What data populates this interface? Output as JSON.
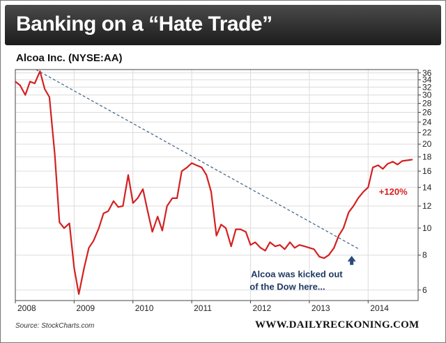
{
  "header": {
    "title": "Banking on a “Hate Trade”"
  },
  "chart_title": "Alcoa Inc. (NYSE:AA)",
  "footer": {
    "source": "Source: StockCharts.com",
    "brand": "WWW.DAILYRECKONING.COM"
  },
  "colors": {
    "price_line": "#d42020",
    "trend_line": "#4a6a8a",
    "arrow": "#2a4a7a",
    "annotation_text": "#1f3a63",
    "gain_text": "#d42020"
  },
  "chart_data": {
    "type": "line",
    "title": "Alcoa Inc. (NYSE:AA)",
    "y_scale": "log",
    "ylim": [
      5.5,
      37
    ],
    "xlim": [
      2008.0,
      2014.85
    ],
    "grid": true,
    "x_ticks": [
      "2008",
      "2009",
      "2010",
      "2011",
      "2012",
      "2013",
      "2014"
    ],
    "y_ticks": [
      "36",
      "34",
      "32",
      "30",
      "28",
      "26",
      "24",
      "22",
      "20",
      "18",
      "16",
      "14",
      "12",
      "10",
      "8",
      "6"
    ],
    "series": [
      {
        "x": [
          2008.0,
          2008.08,
          2008.17,
          2008.25,
          2008.33,
          2008.42,
          2008.5,
          2008.58,
          2008.67,
          2008.75,
          2008.83,
          2008.92,
          2009.0,
          2009.08,
          2009.17,
          2009.25,
          2009.33,
          2009.42,
          2009.5,
          2009.58,
          2009.67,
          2009.75,
          2009.83,
          2009.92,
          2010.0,
          2010.08,
          2010.17,
          2010.25,
          2010.33,
          2010.42,
          2010.5,
          2010.58,
          2010.67,
          2010.75,
          2010.83,
          2010.92,
          2011.0,
          2011.08,
          2011.17,
          2011.25,
          2011.33,
          2011.42,
          2011.5,
          2011.58,
          2011.67,
          2011.75,
          2011.83,
          2011.92,
          2012.0,
          2012.08,
          2012.17,
          2012.25,
          2012.33,
          2012.42,
          2012.5,
          2012.58,
          2012.67,
          2012.75,
          2012.83,
          2012.92,
          2013.0,
          2013.08,
          2013.17,
          2013.25,
          2013.33,
          2013.42,
          2013.5,
          2013.58,
          2013.67,
          2013.75,
          2013.83,
          2013.92,
          2014.0,
          2014.08,
          2014.17,
          2014.25,
          2014.33,
          2014.42,
          2014.5,
          2014.58,
          2014.67,
          2014.75
        ],
        "y": [
          33.5,
          32.5,
          30.0,
          33.5,
          33.0,
          36.5,
          31.5,
          29.5,
          18.5,
          10.5,
          10.0,
          10.4,
          7.2,
          5.8,
          7.2,
          8.5,
          9.0,
          10.0,
          11.3,
          11.5,
          12.5,
          11.9,
          12.0,
          15.5,
          12.3,
          12.8,
          13.8,
          11.5,
          9.7,
          11.0,
          9.8,
          12.0,
          12.8,
          12.8,
          16.0,
          16.5,
          17.1,
          16.8,
          16.5,
          15.5,
          13.5,
          9.4,
          10.3,
          10.0,
          8.6,
          9.9,
          9.9,
          9.7,
          8.7,
          8.9,
          8.5,
          8.3,
          8.9,
          8.6,
          8.7,
          8.4,
          8.9,
          8.5,
          8.7,
          8.6,
          8.5,
          8.4,
          7.9,
          7.8,
          8.0,
          8.5,
          9.4,
          10.0,
          11.4,
          12.0,
          12.8,
          13.5,
          14.0,
          16.5,
          16.8,
          16.3,
          17.0,
          17.3,
          16.9,
          17.4,
          17.5,
          17.6
        ]
      }
    ],
    "trendline": {
      "x": [
        2008.35,
        2013.85
      ],
      "y": [
        37.0,
        8.4
      ]
    },
    "annotations": [
      {
        "text": "Alcoa was kicked out",
        "text2": "of the Dow here...",
        "x": 2013.72,
        "y": 8.0
      },
      {
        "text": "+120%",
        "x": 2014.35,
        "y": 12.0
      }
    ]
  }
}
